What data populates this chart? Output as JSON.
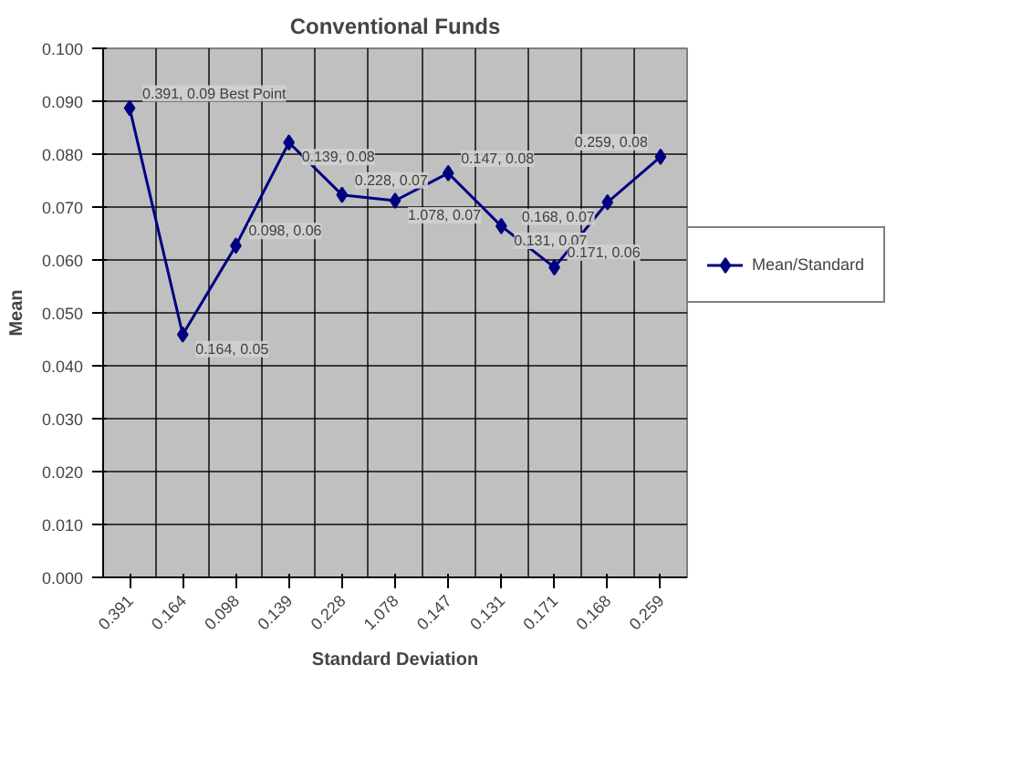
{
  "chart_data": {
    "type": "line",
    "title": "Conventional Funds",
    "xlabel": "Standard Deviation",
    "ylabel": "Mean",
    "categories": [
      "0.391",
      "0.164",
      "0.098",
      "0.139",
      "0.228",
      "1.078",
      "0.147",
      "0.131",
      "0.171",
      "0.168",
      "0.259"
    ],
    "series": [
      {
        "name": "Mean/Standard",
        "color": "#000080",
        "values": [
          0.0887,
          0.0459,
          0.0627,
          0.0822,
          0.0723,
          0.0712,
          0.0764,
          0.0664,
          0.0586,
          0.0709,
          0.0795
        ],
        "value_labels": [
          "0.391, 0.09 Best Point",
          "0.164, 0.05",
          "0.098, 0.06",
          "0.139, 0.08",
          "0.228, 0.07",
          "1.078, 0.07",
          "0.147, 0.08",
          "0.131, 0.07",
          "0.171, 0.06",
          "0.168, 0.07",
          "0.259, 0.08"
        ]
      }
    ],
    "ylim": [
      0,
      0.1
    ],
    "yticks": [
      {
        "value": 0,
        "label": "0.000"
      },
      {
        "value": 0.01,
        "label": "0.010"
      },
      {
        "value": 0.02,
        "label": "0.020"
      },
      {
        "value": 0.03,
        "label": "0.030"
      },
      {
        "value": 0.04,
        "label": "0.040"
      },
      {
        "value": 0.05,
        "label": "0.050"
      },
      {
        "value": 0.06,
        "label": "0.060"
      },
      {
        "value": 0.07,
        "label": "0.070"
      },
      {
        "value": 0.08,
        "label": "0.080"
      },
      {
        "value": 0.09,
        "label": "0.090"
      },
      {
        "value": 0.1,
        "label": "0.100"
      }
    ],
    "grid": true,
    "legend": "right",
    "marker": "diamond",
    "line_style": "solid"
  }
}
